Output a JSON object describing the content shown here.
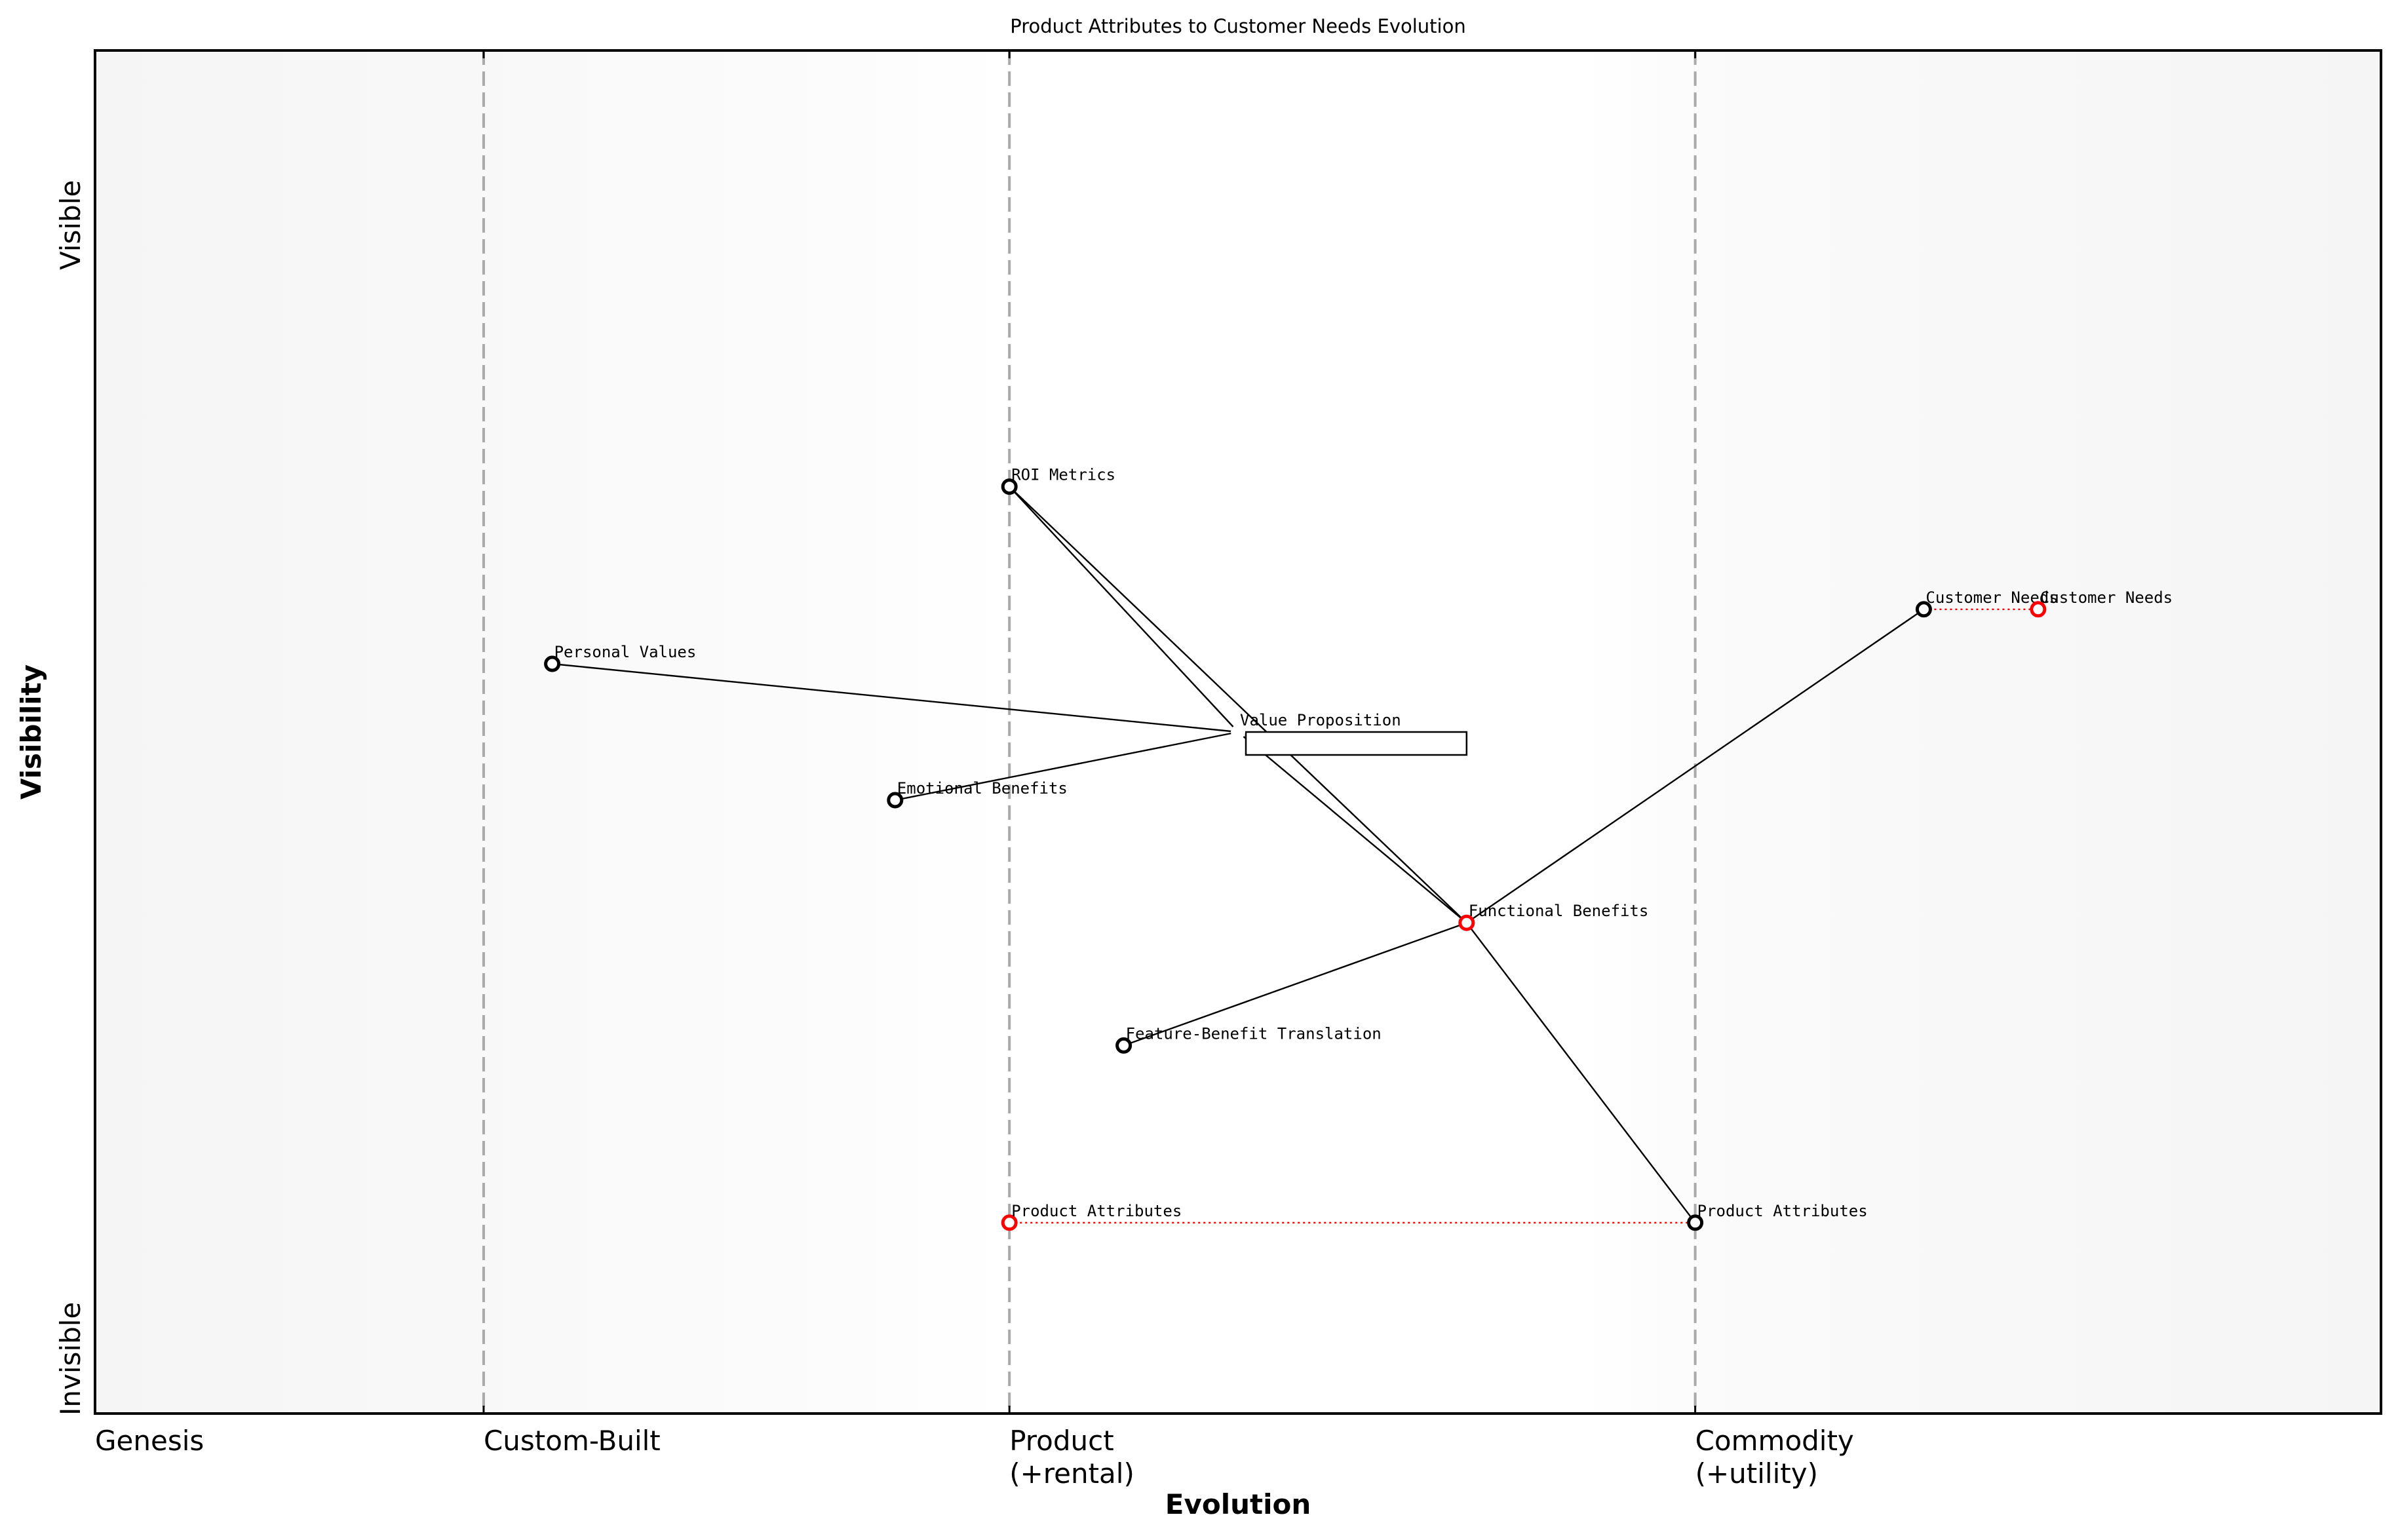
{
  "chart_data": {
    "type": "scatter",
    "subtype": "wardley-map",
    "title": "Product Attributes to Customer Needs Evolution",
    "xlabel": "Evolution",
    "ylabel": "Visibility",
    "xlim": [
      0,
      1
    ],
    "ylim": [
      0,
      1
    ],
    "x_stages": [
      {
        "label": "Genesis",
        "x": 0.0
      },
      {
        "label": "Custom-Built",
        "x": 0.17
      },
      {
        "label": "Product\n(+rental)",
        "x": 0.4
      },
      {
        "label": "Commodity\n(+utility)",
        "x": 0.7
      }
    ],
    "y_labels": {
      "top": "Visible",
      "bottom": "Invisible"
    },
    "nodes": [
      {
        "id": "roi",
        "label": "ROI Metrics",
        "x": 0.4,
        "y": 0.68,
        "color": "#000000"
      },
      {
        "id": "customer_needs",
        "label": "Customer Needs",
        "x": 0.8,
        "y": 0.59,
        "color": "#000000"
      },
      {
        "id": "customer_needs_evolved",
        "label": "Customer Needs",
        "x": 0.85,
        "y": 0.59,
        "color": "#ff0000"
      },
      {
        "id": "personal_values",
        "label": "Personal Values",
        "x": 0.2,
        "y": 0.55,
        "color": "#000000"
      },
      {
        "id": "value_prop",
        "label": "Value Proposition",
        "x": 0.5,
        "y": 0.5,
        "color": "#ffffff",
        "boxed": true
      },
      {
        "id": "emotional",
        "label": "Emotional Benefits",
        "x": 0.35,
        "y": 0.45,
        "color": "#000000"
      },
      {
        "id": "functional",
        "label": "Functional Benefits",
        "x": 0.6,
        "y": 0.36,
        "color": "#ff0000"
      },
      {
        "id": "feature_benefit",
        "label": "Feature-Benefit Translation",
        "x": 0.45,
        "y": 0.27,
        "color": "#000000"
      },
      {
        "id": "product_attr_old",
        "label": "Product Attributes",
        "x": 0.4,
        "y": 0.14,
        "color": "#ff0000"
      },
      {
        "id": "product_attr",
        "label": "Product Attributes",
        "x": 0.7,
        "y": 0.14,
        "color": "#000000"
      }
    ],
    "edges": [
      {
        "from": "roi",
        "to": "value_prop"
      },
      {
        "from": "roi",
        "to": "functional"
      },
      {
        "from": "personal_values",
        "to": "value_prop"
      },
      {
        "from": "emotional",
        "to": "value_prop"
      },
      {
        "from": "value_prop",
        "to": "functional"
      },
      {
        "from": "feature_benefit",
        "to": "functional"
      },
      {
        "from": "functional",
        "to": "customer_needs"
      },
      {
        "from": "functional",
        "to": "product_attr"
      }
    ],
    "evolution_edges": [
      {
        "from": "product_attr_old",
        "to": "product_attr",
        "color": "#ff0000",
        "style": "dotted"
      },
      {
        "from": "customer_needs",
        "to": "customer_needs_evolved",
        "color": "#ff0000",
        "style": "dotted"
      }
    ],
    "background": {
      "type": "horizontal-gradient",
      "edge_color": "#f5f5f5",
      "center_color": "#ffffff"
    },
    "grid": false
  }
}
